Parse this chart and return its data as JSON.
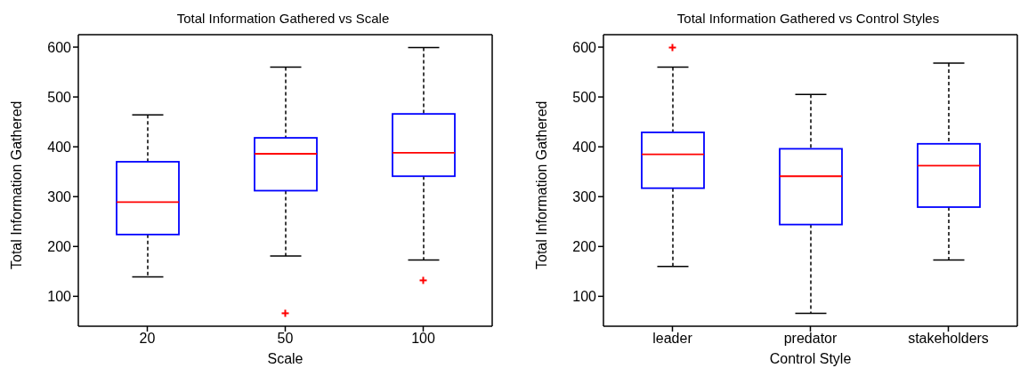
{
  "chart_data": [
    {
      "type": "box",
      "title": "Total Information Gathered vs Scale",
      "xlabel": "Scale",
      "ylabel": "Total Information Gathered",
      "categories": [
        "20",
        "50",
        "100"
      ],
      "ylim": [
        40,
        625
      ],
      "yticks": [
        100,
        200,
        300,
        400,
        500,
        600
      ],
      "boxes": [
        {
          "low": 139,
          "q1": 224,
          "median": 289,
          "q3": 370,
          "high": 464
        },
        {
          "low": 181,
          "q1": 312,
          "median": 386,
          "q3": 418,
          "high": 560,
          "outliers": [
            66
          ]
        },
        {
          "low": 173,
          "q1": 341,
          "median": 388,
          "q3": 466,
          "high": 599,
          "outliers": [
            132
          ]
        }
      ]
    },
    {
      "type": "box",
      "title": "Total Information Gathered vs Control Styles",
      "xlabel": "Control Style",
      "ylabel": "Total Information Gathered",
      "categories": [
        "leader",
        "predator",
        "stakeholders"
      ],
      "ylim": [
        40,
        625
      ],
      "yticks": [
        100,
        200,
        300,
        400,
        500,
        600
      ],
      "boxes": [
        {
          "low": 160,
          "q1": 317,
          "median": 385,
          "q3": 429,
          "high": 560,
          "outliers": [
            599
          ]
        },
        {
          "low": 66,
          "q1": 244,
          "median": 341,
          "q3": 396,
          "high": 505
        },
        {
          "low": 173,
          "q1": 279,
          "median": 362,
          "q3": 406,
          "high": 568
        }
      ]
    }
  ]
}
